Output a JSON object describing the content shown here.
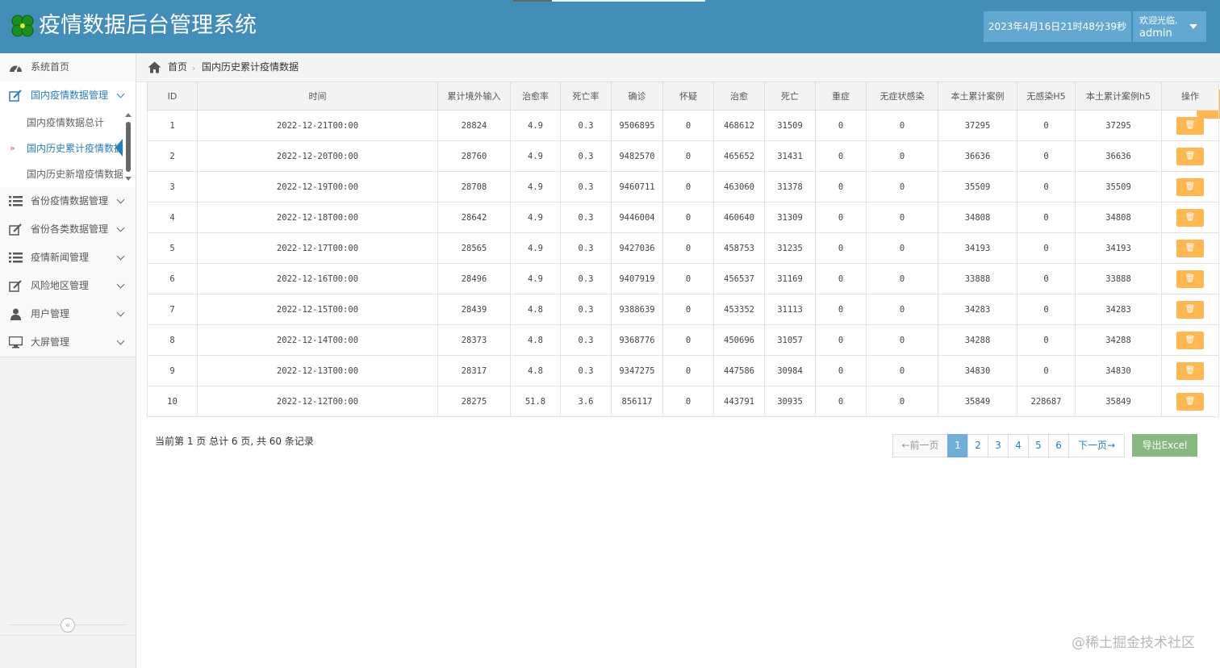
{
  "header": {
    "title": "疫情数据后台管理系统",
    "datetime": "2023年4月16日21时48分39秒",
    "welcome": "欢迎光临,",
    "username": "admin",
    "colors": {
      "bar": "#438eb9",
      "box": "#62a8d1"
    }
  },
  "sidebar": {
    "items": [
      {
        "label": "系统首页",
        "icon": "dashboard-icon"
      },
      {
        "label": "国内疫情数据管理",
        "icon": "edit-icon"
      },
      {
        "label": "省份疫情数据管理",
        "icon": "list-icon"
      },
      {
        "label": "省份各类数据管理",
        "icon": "edit-icon"
      },
      {
        "label": "疫情新闻管理",
        "icon": "list-icon"
      },
      {
        "label": "风险地区管理",
        "icon": "edit-icon"
      },
      {
        "label": "用户管理",
        "icon": "user-icon"
      },
      {
        "label": "大屏管理",
        "icon": "desktop-icon"
      }
    ],
    "submenu": [
      {
        "label": "国内疫情数据总计"
      },
      {
        "label": "国内历史累计疫情数据"
      },
      {
        "label": "国内历史新增疫情数据"
      }
    ]
  },
  "breadcrumb": {
    "home": "首页",
    "current": "国内历史累计疫情数据"
  },
  "table": {
    "columns": [
      "ID",
      "时间",
      "累计境外输入",
      "治愈率",
      "死亡率",
      "确诊",
      "怀疑",
      "治愈",
      "死亡",
      "重症",
      "无症状感染",
      "本土累计案例",
      "无感染H5",
      "本土累计案例h5",
      "操作"
    ],
    "rows": [
      [
        "1",
        "2022-12-21T00:00",
        "28824",
        "4.9",
        "0.3",
        "9506895",
        "0",
        "468612",
        "31509",
        "0",
        "0",
        "37295",
        "0",
        "37295"
      ],
      [
        "2",
        "2022-12-20T00:00",
        "28760",
        "4.9",
        "0.3",
        "9482570",
        "0",
        "465652",
        "31431",
        "0",
        "0",
        "36636",
        "0",
        "36636"
      ],
      [
        "3",
        "2022-12-19T00:00",
        "28708",
        "4.9",
        "0.3",
        "9460711",
        "0",
        "463060",
        "31378",
        "0",
        "0",
        "35509",
        "0",
        "35509"
      ],
      [
        "4",
        "2022-12-18T00:00",
        "28642",
        "4.9",
        "0.3",
        "9446004",
        "0",
        "460640",
        "31309",
        "0",
        "0",
        "34808",
        "0",
        "34808"
      ],
      [
        "5",
        "2022-12-17T00:00",
        "28565",
        "4.9",
        "0.3",
        "9427036",
        "0",
        "458753",
        "31235",
        "0",
        "0",
        "34193",
        "0",
        "34193"
      ],
      [
        "6",
        "2022-12-16T00:00",
        "28496",
        "4.9",
        "0.3",
        "9407919",
        "0",
        "456537",
        "31169",
        "0",
        "0",
        "33888",
        "0",
        "33888"
      ],
      [
        "7",
        "2022-12-15T00:00",
        "28439",
        "4.8",
        "0.3",
        "9388639",
        "0",
        "453352",
        "31113",
        "0",
        "0",
        "34283",
        "0",
        "34283"
      ],
      [
        "8",
        "2022-12-14T00:00",
        "28373",
        "4.8",
        "0.3",
        "9368776",
        "0",
        "450696",
        "31057",
        "0",
        "0",
        "34288",
        "0",
        "34288"
      ],
      [
        "9",
        "2022-12-13T00:00",
        "28317",
        "4.8",
        "0.3",
        "9347275",
        "0",
        "447586",
        "30984",
        "0",
        "0",
        "34830",
        "0",
        "34830"
      ],
      [
        "10",
        "2022-12-12T00:00",
        "28275",
        "51.8",
        "3.6",
        "856117",
        "0",
        "443791",
        "30935",
        "0",
        "0",
        "35849",
        "228687",
        "35849"
      ]
    ]
  },
  "pagination": {
    "info": "当前第 1 页 总计 6 页, 共 60 条记录",
    "prev": "←前一页",
    "pages": [
      "1",
      "2",
      "3",
      "4",
      "5",
      "6"
    ],
    "current": "1",
    "next": "下一页→",
    "export": "导出Excel"
  },
  "watermark": "@稀土掘金技术社区"
}
